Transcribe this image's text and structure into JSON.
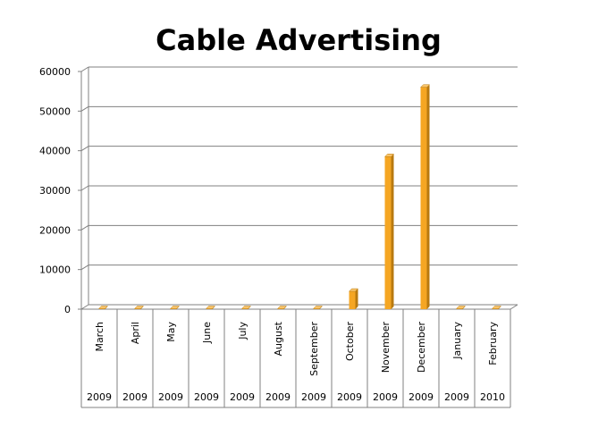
{
  "chart_data": {
    "type": "bar",
    "title": "Cable Advertising",
    "xlabel": "",
    "ylabel": "",
    "ylim": [
      0,
      60000
    ],
    "yticks": [
      0,
      10000,
      20000,
      30000,
      40000,
      50000,
      60000
    ],
    "grid": true,
    "legend": "none",
    "categories": [
      "March",
      "April",
      "May",
      "June",
      "July",
      "August",
      "September",
      "October",
      "November",
      "December",
      "January",
      "February"
    ],
    "years": [
      "2009",
      "2009",
      "2009",
      "2009",
      "2009",
      "2009",
      "2009",
      "2009",
      "2009",
      "2009",
      "2009",
      "2010"
    ],
    "values": [
      0,
      0,
      0,
      0,
      0,
      0,
      0,
      4500,
      38500,
      56000,
      0,
      0
    ],
    "colors": {
      "bar_front": "#F5A623",
      "bar_side": "#B87A10",
      "bar_top": "#F9C46A",
      "grid": "#808080"
    }
  }
}
